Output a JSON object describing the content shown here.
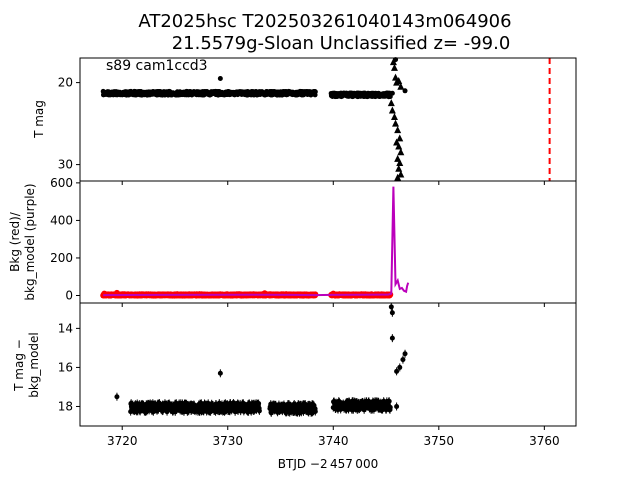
{
  "figure": {
    "title_line1": "AT2025hsc  T202503261040143m064906",
    "title_line2": "21.5579g-Sloan Unclassified z= -99.0",
    "xlabel": "BTJD −2 457 000",
    "xticks": [
      "3720",
      "3730",
      "3740",
      "3750",
      "3760"
    ]
  },
  "chart_data": [
    {
      "type": "scatter",
      "panel": "top",
      "annotation": "s89 cam1ccd3",
      "ylabel": "T mag",
      "y_inverted": true,
      "xlim": [
        3716.0,
        3763.0
      ],
      "ylim": [
        32.0,
        17.0
      ],
      "yticks": [
        "20",
        "30"
      ],
      "series": [
        {
          "name": "",
          "marker": "circle",
          "color": "#000000",
          "segments": [
            [
              3718.2,
              3738.3,
              21.3,
              0.45
            ],
            [
              3739.8,
              3745.4,
              21.5,
              0.45
            ]
          ],
          "points": [
            [
              3729.3,
              19.5
            ],
            [
              3745.6,
              21.3
            ],
            [
              3746.8,
              21.0
            ],
            [
              3745.9,
              17.2
            ]
          ]
        },
        {
          "name": "",
          "marker": "triangle",
          "color": "#000000",
          "points": [
            [
              3745.7,
              17.5
            ],
            [
              3745.8,
              18.2
            ],
            [
              3745.9,
              19.4
            ],
            [
              3746.0,
              20.0
            ],
            [
              3746.2,
              19.8
            ],
            [
              3746.4,
              20.5
            ],
            [
              3745.5,
              22.5
            ],
            [
              3745.6,
              23.4
            ],
            [
              3745.8,
              24.2
            ],
            [
              3745.9,
              25.0
            ],
            [
              3746.1,
              25.8
            ],
            [
              3746.3,
              26.8
            ],
            [
              3746.0,
              27.3
            ],
            [
              3746.2,
              27.8
            ],
            [
              3746.4,
              28.5
            ],
            [
              3746.1,
              29.3
            ],
            [
              3746.3,
              29.8
            ],
            [
              3746.2,
              30.5
            ],
            [
              3746.4,
              31.2
            ],
            [
              3746.1,
              31.6
            ]
          ]
        }
      ],
      "vline": {
        "x": 3760.5,
        "color": "#ff0000",
        "style": "dashed"
      }
    },
    {
      "type": "line",
      "panel": "middle",
      "ylabel_line1": "Bkg (red)/",
      "ylabel_line2": "bkg_model (purple)",
      "xlim": [
        3716.0,
        3763.0
      ],
      "ylim": [
        -40,
        610
      ],
      "yticks": [
        "0",
        "200",
        "400",
        "600"
      ],
      "series": [
        {
          "name": "",
          "color": "#ff0000",
          "kind": "scatter",
          "segments": [
            [
              3718.2,
              3738.3,
              3,
              7
            ],
            [
              3739.8,
              3745.4,
              3,
              7
            ]
          ],
          "points": [
            [
              3718.3,
              10
            ],
            [
              3719.5,
              14
            ],
            [
              3733.5,
              12
            ],
            [
              3740.0,
              10
            ]
          ]
        },
        {
          "name": "",
          "color": "#bb00bb",
          "kind": "line",
          "points": [
            [
              3718.2,
              2
            ],
            [
              3725,
              3
            ],
            [
              3732,
              4
            ],
            [
              3736,
              3
            ],
            [
              3738.3,
              2
            ],
            [
              3739.8,
              3
            ],
            [
              3743,
              4
            ],
            [
              3745.2,
              5
            ],
            [
              3745.5,
              10
            ],
            [
              3745.7,
              580
            ],
            [
              3745.9,
              60
            ],
            [
              3746.1,
              80
            ],
            [
              3746.3,
              35
            ],
            [
              3746.5,
              40
            ],
            [
              3746.7,
              25
            ],
            [
              3746.9,
              20
            ],
            [
              3747.0,
              50
            ],
            [
              3747.1,
              68
            ]
          ]
        }
      ]
    },
    {
      "type": "scatter",
      "panel": "bottom",
      "ylabel_line1": "T mag −",
      "ylabel_line2": "bkg_model",
      "y_inverted": true,
      "xlim": [
        3716.0,
        3763.0
      ],
      "ylim": [
        19.0,
        12.7
      ],
      "yticks": [
        "14",
        "16",
        "18"
      ],
      "series": [
        {
          "name": "",
          "marker": "circle",
          "color": "#000000",
          "segments": [
            [
              3720.8,
              3733.0,
              18.05,
              0.45
            ],
            [
              3734.0,
              3738.3,
              18.1,
              0.45
            ],
            [
              3740.0,
              3745.4,
              17.95,
              0.45
            ]
          ],
          "points": [
            [
              3719.5,
              17.5
            ],
            [
              3729.3,
              16.3
            ],
            [
              3745.5,
              12.9
            ],
            [
              3745.6,
              13.2
            ],
            [
              3745.6,
              14.5
            ],
            [
              3746.0,
              16.2
            ],
            [
              3746.3,
              16.0
            ],
            [
              3746.8,
              15.3
            ],
            [
              3746.6,
              15.6
            ],
            [
              3746.0,
              18.0
            ]
          ]
        }
      ]
    }
  ]
}
